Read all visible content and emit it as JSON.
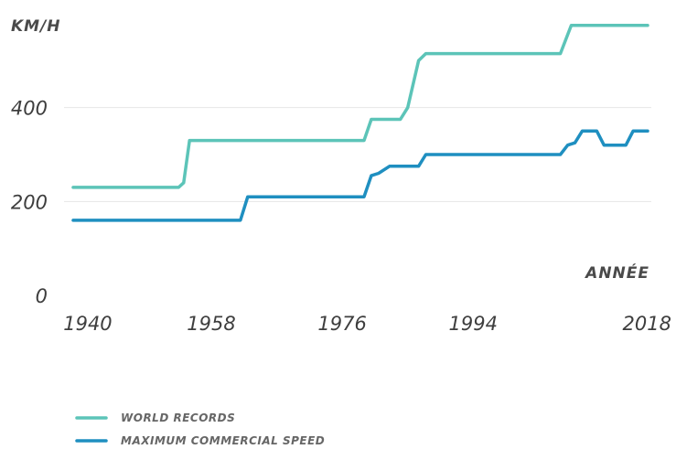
{
  "chart_data": {
    "type": "line",
    "title": "",
    "ylabel": "KM/H",
    "xlabel": "ANNÉE",
    "xlim": [
      1939,
      2018
    ],
    "ylim": [
      0,
      600
    ],
    "y_ticks": [
      0,
      200,
      400
    ],
    "x_ticks": [
      1940,
      1958,
      1976,
      1994,
      2018
    ],
    "grid": true,
    "legend_position": "bottom-left",
    "series": [
      {
        "name": "WORLD RECORDS",
        "color": "#5cc4b8",
        "points": [
          [
            1939,
            230
          ],
          [
            1953.5,
            230
          ],
          [
            1954.2,
            240
          ],
          [
            1955,
            330
          ],
          [
            1979,
            330
          ],
          [
            1980,
            375
          ],
          [
            1984,
            375
          ],
          [
            1985,
            400
          ],
          [
            1986.5,
            500
          ],
          [
            1987.5,
            515
          ],
          [
            2006,
            515
          ],
          [
            2007.5,
            575
          ],
          [
            2018,
            575
          ]
        ]
      },
      {
        "name": "MAXIMUM COMMERCIAL SPEED",
        "color": "#1f8fc0",
        "points": [
          [
            1939,
            160
          ],
          [
            1962,
            160
          ],
          [
            1963,
            210
          ],
          [
            1979,
            210
          ],
          [
            1980,
            255
          ],
          [
            1981,
            260
          ],
          [
            1982.5,
            275
          ],
          [
            1986.5,
            275
          ],
          [
            1987.5,
            300
          ],
          [
            2006,
            300
          ],
          [
            2007,
            320
          ],
          [
            2008,
            325
          ],
          [
            2009,
            350
          ],
          [
            2011,
            350
          ],
          [
            2012,
            320
          ],
          [
            2015,
            320
          ],
          [
            2016,
            350
          ],
          [
            2018,
            350
          ]
        ]
      }
    ]
  }
}
